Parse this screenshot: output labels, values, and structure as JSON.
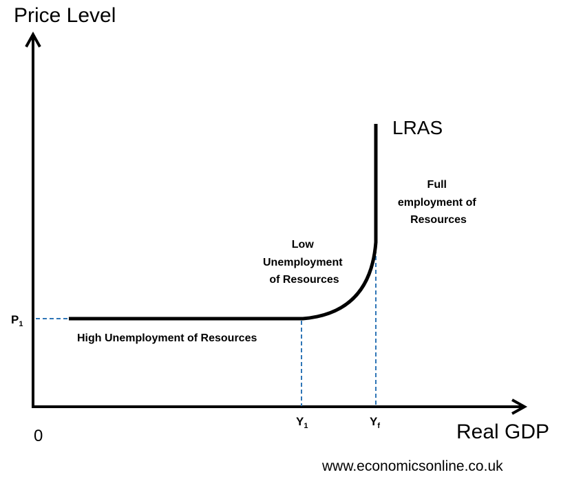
{
  "axes": {
    "y_title": "Price Level",
    "x_title": "Real GDP",
    "origin": "0"
  },
  "curve": {
    "label": "LRAS"
  },
  "ticks": {
    "p1_main": "P",
    "p1_sub": "1",
    "y1_main": "Y",
    "y1_sub": "1",
    "yf_main": "Y",
    "yf_sub": "f"
  },
  "regions": {
    "high_unemployment": "High Unemployment of Resources",
    "low_unemployment": [
      "Low",
      "Unemployment",
      "of Resources"
    ],
    "full_employment": [
      "Full",
      "employment of",
      "Resources"
    ]
  },
  "source": "www.economicsonline.co.uk",
  "colors": {
    "axis": "#000000",
    "curve": "#000000",
    "guide": "#2e75b6"
  }
}
